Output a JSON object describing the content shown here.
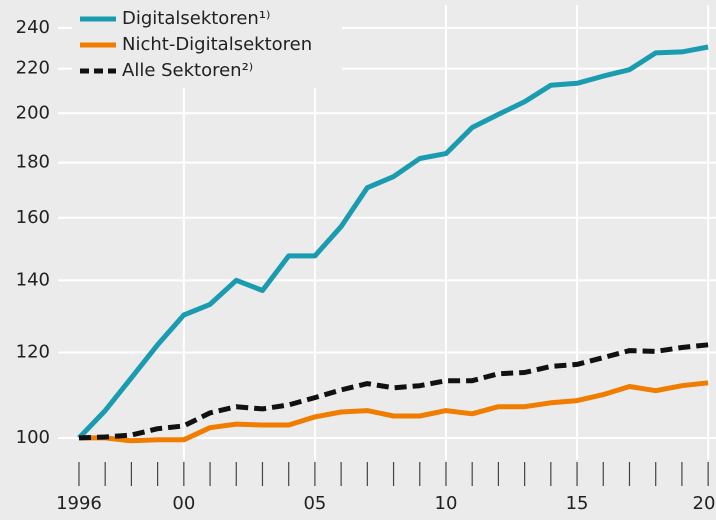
{
  "chart_data": {
    "type": "line",
    "x": [
      1996,
      1997,
      1998,
      1999,
      2000,
      2001,
      2002,
      2003,
      2004,
      2005,
      2006,
      2007,
      2008,
      2009,
      2010,
      2011,
      2012,
      2013,
      2014,
      2015,
      2016,
      2017,
      2018,
      2019,
      2020
    ],
    "series": [
      {
        "name": "Digitalsektoren¹⁾",
        "color": "#1a9bb0",
        "dash": false,
        "values": [
          100,
          106,
          113.7,
          122,
          130,
          133,
          140,
          137,
          147.5,
          147.5,
          157,
          170.6,
          174.7,
          181.6,
          183.5,
          194,
          199.5,
          205,
          212.3,
          213.2,
          216.5,
          219.5,
          227.5,
          228,
          230.4
        ]
      },
      {
        "name": "Nicht-Digitalsektoren",
        "color": "#f07d00",
        "dash": false,
        "values": [
          100,
          100,
          99.4,
          99.6,
          99.6,
          102.2,
          103,
          102.8,
          102.8,
          104.6,
          105.7,
          106,
          104.8,
          104.8,
          106,
          105.3,
          106.9,
          106.9,
          107.8,
          108.3,
          109.7,
          111.6,
          110.6,
          111.8,
          112.5
        ]
      },
      {
        "name": "Alle Sektoren²⁾",
        "color": "#111111",
        "dash": true,
        "values": [
          100,
          100.2,
          100.6,
          102,
          102.6,
          105.5,
          106.9,
          106.4,
          107.3,
          109,
          110.8,
          112.3,
          111.3,
          111.8,
          113,
          113,
          114.7,
          115,
          116.5,
          117,
          118.7,
          120.5,
          120.3,
          121.3,
          122
        ]
      }
    ],
    "xlim": [
      1995.2,
      2020.3
    ],
    "xticks": [
      {
        "value": 1996,
        "label": "1996"
      },
      {
        "value": 2000,
        "label": "00"
      },
      {
        "value": 2005,
        "label": "05"
      },
      {
        "value": 2010,
        "label": "10"
      },
      {
        "value": 2015,
        "label": "15"
      },
      {
        "value": 2020,
        "label": "20"
      }
    ],
    "ylim": [
      95.4,
      252
    ],
    "yticks": [
      100,
      120,
      140,
      160,
      180,
      200,
      220,
      240
    ],
    "log_y": true,
    "grid": true,
    "legend": "upper left"
  }
}
